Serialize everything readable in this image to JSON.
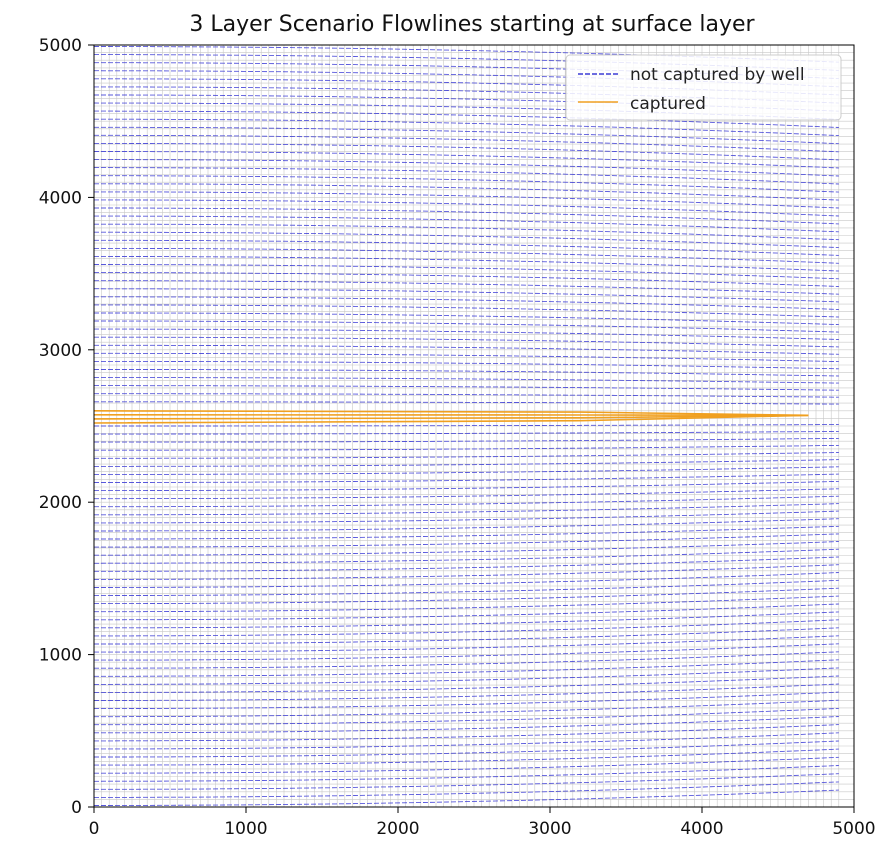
{
  "chart_data": {
    "type": "line",
    "title": "3 Layer Scenario Flowlines starting at surface layer",
    "xlabel": "",
    "ylabel": "",
    "xlim": [
      0,
      5000
    ],
    "ylim": [
      0,
      5000
    ],
    "xticks": [
      0,
      1000,
      2000,
      3000,
      4000,
      5000
    ],
    "yticks": [
      0,
      1000,
      2000,
      3000,
      4000,
      5000
    ],
    "grid": true,
    "legend_position": "top-right",
    "series": [
      {
        "name": "not captured by well",
        "color": "#3b3bd6",
        "flowline_count": 95,
        "y_range": [
          10,
          4990
        ],
        "x_range": [
          0,
          4900
        ]
      },
      {
        "name": "captured",
        "color": "#f0a020",
        "flowline_count": 4,
        "y_range": [
          2520,
          2600
        ],
        "x_range": [
          0,
          4700
        ]
      }
    ],
    "grid_color": "#c8c8c8"
  }
}
